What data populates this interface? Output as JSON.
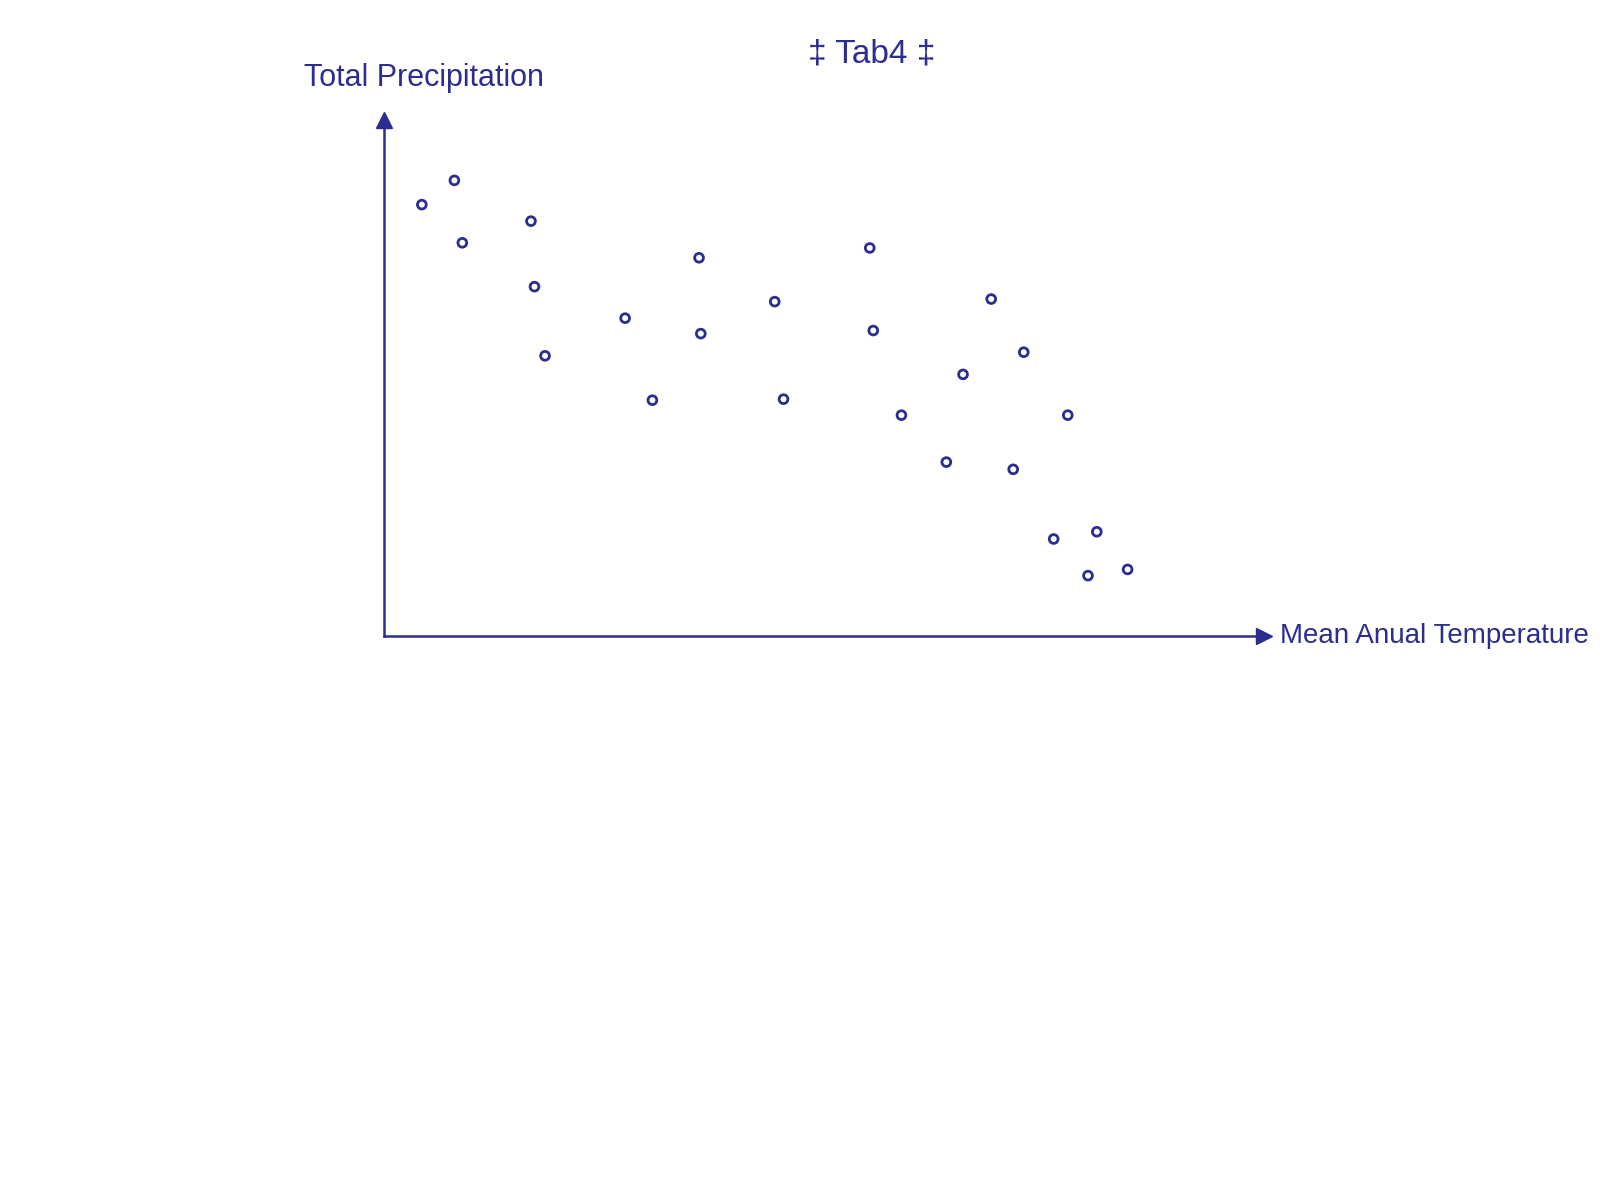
{
  "chart_data": {
    "type": "scatter",
    "title": "‡ Tab4 ‡",
    "x_label": "Mean Anual Temperature",
    "y_label": "Total Precipitation",
    "x": [
      4.3,
      8.0,
      8.9,
      16.7,
      17.1,
      18.3,
      27.4,
      30.5,
      35.8,
      36.0,
      44.4,
      45.4,
      55.2,
      55.6,
      58.8,
      63.9,
      65.8,
      69.0,
      71.5,
      72.7,
      77.7,
      76.1,
      81.0,
      80.0,
      84.5
    ],
    "values": [
      83.6,
      88.3,
      76.2,
      80.4,
      67.7,
      54.3,
      61.6,
      45.7,
      73.3,
      58.6,
      64.8,
      45.9,
      75.2,
      59.2,
      42.8,
      33.7,
      50.7,
      65.3,
      32.3,
      55.0,
      42.8,
      18.8,
      20.2,
      11.7,
      12.9
    ],
    "xlim": [
      0,
      100
    ],
    "ylim": [
      0,
      100
    ],
    "xticks": [],
    "yticks": [],
    "tick_labels": false,
    "grid": false,
    "color": "#2b2d8f",
    "marker": "o"
  }
}
